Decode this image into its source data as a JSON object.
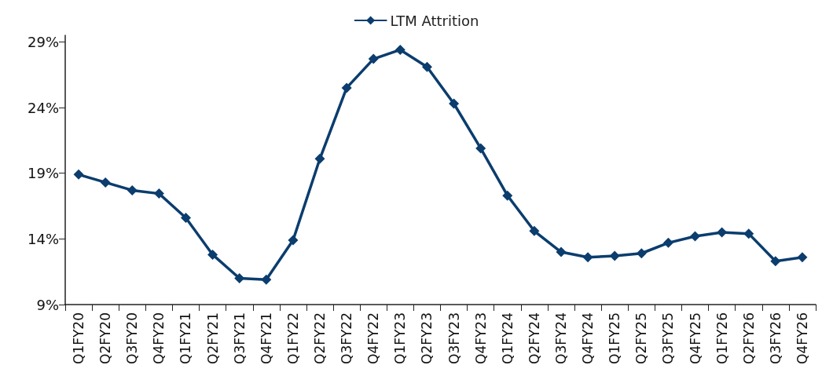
{
  "chart_data": {
    "type": "line",
    "categories": [
      "Q1FY20",
      "Q2FY20",
      "Q3FY20",
      "Q4FY20",
      "Q1FY21",
      "Q2FY21",
      "Q3FY21",
      "Q4FY21",
      "Q1FY22",
      "Q2FY22",
      "Q3FY22",
      "Q4FY22",
      "Q1FY23",
      "Q2FY23",
      "Q3FY23",
      "Q4FY23",
      "Q1FY24",
      "Q2FY24",
      "Q3FY24",
      "Q4FY24",
      "Q1FY25",
      "Q2FY25",
      "Q3FY25",
      "Q4FY25",
      "Q1FY26",
      "Q2FY26",
      "Q3FY26",
      "Q4FY26"
    ],
    "series": [
      {
        "name": "LTM Attrition",
        "color": "#0b3d6e",
        "values": [
          18.9,
          18.3,
          17.7,
          17.45,
          15.6,
          12.8,
          11.0,
          10.9,
          13.9,
          20.1,
          25.5,
          27.7,
          28.4,
          27.1,
          24.3,
          20.9,
          17.3,
          14.6,
          13.0,
          12.6,
          12.7,
          12.9,
          13.7,
          14.2,
          14.5,
          14.4,
          12.3,
          12.6
        ]
      }
    ],
    "ylim": [
      9,
      29.5
    ],
    "yticks": [
      {
        "value": 9,
        "label": "9%"
      },
      {
        "value": 14,
        "label": "14%"
      },
      {
        "value": 19,
        "label": "19%"
      },
      {
        "value": 24,
        "label": "24%"
      },
      {
        "value": 29,
        "label": "29%"
      }
    ],
    "grid": false,
    "legend": "top",
    "marker": "diamond",
    "line_style": "solid"
  }
}
